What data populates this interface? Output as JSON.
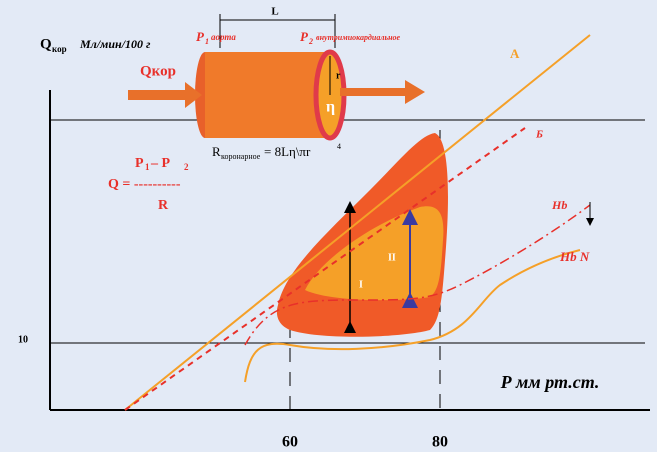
{
  "y_axis": {
    "symbol": "Q",
    "subscript": "кор",
    "unit": "Мл/мин/100 г",
    "tick": "10"
  },
  "x_axis": {
    "label": "Р мм рт.ст.",
    "ticks": [
      "60",
      "80"
    ]
  },
  "vessel": {
    "length": "L",
    "p1": "P",
    "p1_sub": "1",
    "p1_name": "аорта",
    "p2": "P",
    "p2_sub": "2",
    "p2_name": "внутримиокардиальное",
    "flow": "Qкор",
    "radius": "r",
    "viscosity": "η"
  },
  "resistance": {
    "symbol": "R",
    "subscript": "коронарное",
    "formula": "= 8Lη\\πr",
    "power": "4"
  },
  "flow_formula": {
    "p1": "P",
    "p1_sub": "1",
    "minus": " – P",
    "p2_sub": "2",
    "lhs": "Q = ----------",
    "denominator": "R"
  },
  "lines": {
    "a": "A",
    "b": "Б",
    "hb": "Hb",
    "hbn": "Hb N"
  },
  "zones": {
    "one": "I",
    "two": "II"
  }
}
